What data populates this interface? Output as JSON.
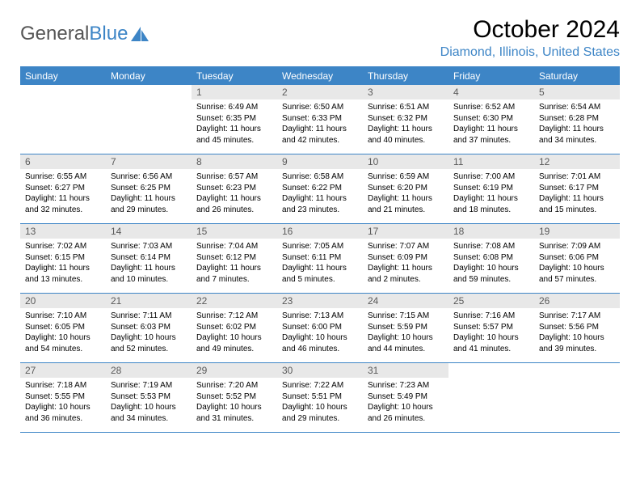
{
  "brand": {
    "word1": "General",
    "word2": "Blue"
  },
  "title": "October 2024",
  "location": "Diamond, Illinois, United States",
  "colors": {
    "accent": "#3d85c6",
    "day_header_bg": "#e8e8e8",
    "day_header_text": "#5a5a5a",
    "background": "#ffffff"
  },
  "weekdays": [
    "Sunday",
    "Monday",
    "Tuesday",
    "Wednesday",
    "Thursday",
    "Friday",
    "Saturday"
  ],
  "first_weekday_index": 2,
  "days_in_month": 31,
  "days": {
    "1": {
      "sunrise": "6:49 AM",
      "sunset": "6:35 PM",
      "daylight": "11 hours and 45 minutes."
    },
    "2": {
      "sunrise": "6:50 AM",
      "sunset": "6:33 PM",
      "daylight": "11 hours and 42 minutes."
    },
    "3": {
      "sunrise": "6:51 AM",
      "sunset": "6:32 PM",
      "daylight": "11 hours and 40 minutes."
    },
    "4": {
      "sunrise": "6:52 AM",
      "sunset": "6:30 PM",
      "daylight": "11 hours and 37 minutes."
    },
    "5": {
      "sunrise": "6:54 AM",
      "sunset": "6:28 PM",
      "daylight": "11 hours and 34 minutes."
    },
    "6": {
      "sunrise": "6:55 AM",
      "sunset": "6:27 PM",
      "daylight": "11 hours and 32 minutes."
    },
    "7": {
      "sunrise": "6:56 AM",
      "sunset": "6:25 PM",
      "daylight": "11 hours and 29 minutes."
    },
    "8": {
      "sunrise": "6:57 AM",
      "sunset": "6:23 PM",
      "daylight": "11 hours and 26 minutes."
    },
    "9": {
      "sunrise": "6:58 AM",
      "sunset": "6:22 PM",
      "daylight": "11 hours and 23 minutes."
    },
    "10": {
      "sunrise": "6:59 AM",
      "sunset": "6:20 PM",
      "daylight": "11 hours and 21 minutes."
    },
    "11": {
      "sunrise": "7:00 AM",
      "sunset": "6:19 PM",
      "daylight": "11 hours and 18 minutes."
    },
    "12": {
      "sunrise": "7:01 AM",
      "sunset": "6:17 PM",
      "daylight": "11 hours and 15 minutes."
    },
    "13": {
      "sunrise": "7:02 AM",
      "sunset": "6:15 PM",
      "daylight": "11 hours and 13 minutes."
    },
    "14": {
      "sunrise": "7:03 AM",
      "sunset": "6:14 PM",
      "daylight": "11 hours and 10 minutes."
    },
    "15": {
      "sunrise": "7:04 AM",
      "sunset": "6:12 PM",
      "daylight": "11 hours and 7 minutes."
    },
    "16": {
      "sunrise": "7:05 AM",
      "sunset": "6:11 PM",
      "daylight": "11 hours and 5 minutes."
    },
    "17": {
      "sunrise": "7:07 AM",
      "sunset": "6:09 PM",
      "daylight": "11 hours and 2 minutes."
    },
    "18": {
      "sunrise": "7:08 AM",
      "sunset": "6:08 PM",
      "daylight": "10 hours and 59 minutes."
    },
    "19": {
      "sunrise": "7:09 AM",
      "sunset": "6:06 PM",
      "daylight": "10 hours and 57 minutes."
    },
    "20": {
      "sunrise": "7:10 AM",
      "sunset": "6:05 PM",
      "daylight": "10 hours and 54 minutes."
    },
    "21": {
      "sunrise": "7:11 AM",
      "sunset": "6:03 PM",
      "daylight": "10 hours and 52 minutes."
    },
    "22": {
      "sunrise": "7:12 AM",
      "sunset": "6:02 PM",
      "daylight": "10 hours and 49 minutes."
    },
    "23": {
      "sunrise": "7:13 AM",
      "sunset": "6:00 PM",
      "daylight": "10 hours and 46 minutes."
    },
    "24": {
      "sunrise": "7:15 AM",
      "sunset": "5:59 PM",
      "daylight": "10 hours and 44 minutes."
    },
    "25": {
      "sunrise": "7:16 AM",
      "sunset": "5:57 PM",
      "daylight": "10 hours and 41 minutes."
    },
    "26": {
      "sunrise": "7:17 AM",
      "sunset": "5:56 PM",
      "daylight": "10 hours and 39 minutes."
    },
    "27": {
      "sunrise": "7:18 AM",
      "sunset": "5:55 PM",
      "daylight": "10 hours and 36 minutes."
    },
    "28": {
      "sunrise": "7:19 AM",
      "sunset": "5:53 PM",
      "daylight": "10 hours and 34 minutes."
    },
    "29": {
      "sunrise": "7:20 AM",
      "sunset": "5:52 PM",
      "daylight": "10 hours and 31 minutes."
    },
    "30": {
      "sunrise": "7:22 AM",
      "sunset": "5:51 PM",
      "daylight": "10 hours and 29 minutes."
    },
    "31": {
      "sunrise": "7:23 AM",
      "sunset": "5:49 PM",
      "daylight": "10 hours and 26 minutes."
    }
  },
  "labels": {
    "sunrise": "Sunrise: ",
    "sunset": "Sunset: ",
    "daylight": "Daylight: "
  }
}
